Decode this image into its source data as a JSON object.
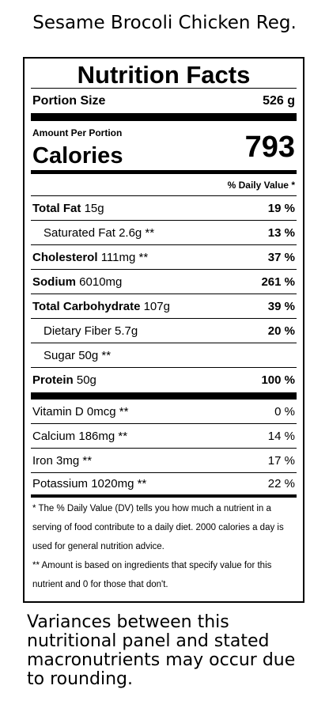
{
  "header": {
    "title": "Sesame Brocoli Chicken Reg."
  },
  "label": {
    "heading": "Nutrition Facts",
    "portion_size_label": "Portion Size",
    "portion_size_value": "526 g",
    "amount_per_portion": "Amount Per Portion",
    "calories_label": "Calories",
    "calories_value": "793",
    "daily_value_header": "% Daily Value *",
    "nutrients": [
      {
        "name": "Total Fat",
        "amount": "15g",
        "dv": "19 %"
      },
      {
        "name": "Saturated Fat",
        "amount": "2.6g **",
        "dv": "13 %"
      },
      {
        "name": "Cholesterol",
        "amount": "111mg **",
        "dv": "37 %"
      },
      {
        "name": "Sodium",
        "amount": "6010mg",
        "dv": "261 %"
      },
      {
        "name": "Total Carbohydrate",
        "amount": "107g",
        "dv": "39 %"
      },
      {
        "name": "Dietary Fiber",
        "amount": "5.7g",
        "dv": "20 %"
      },
      {
        "name": "Sugar",
        "amount": "50g **",
        "dv": ""
      },
      {
        "name": "Protein",
        "amount": "50g",
        "dv": "100 %"
      }
    ],
    "vitamins": [
      {
        "name": "Vitamin D",
        "amount": "0mcg **",
        "dv": "0 %"
      },
      {
        "name": "Calcium",
        "amount": "186mg **",
        "dv": "14 %"
      },
      {
        "name": "Iron",
        "amount": "3mg **",
        "dv": "17 %"
      },
      {
        "name": "Potassium",
        "amount": "1020mg **",
        "dv": "22 %"
      }
    ],
    "footnote_dv": "* The % Daily Value (DV) tells you how much a nutrient in a serving of food contribute to a daily diet. 2000 calories a day is used for general nutrition advice.",
    "footnote_amount": "** Amount is based on ingredients that specify value for this nutrient and 0 for those that don't."
  },
  "note": "Variances between this nutritional panel and stated macronutrients may occur due to rounding."
}
